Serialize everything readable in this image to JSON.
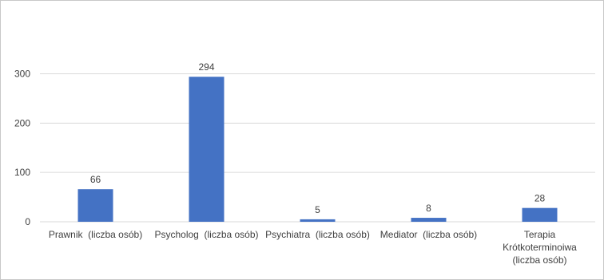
{
  "chart_data": {
    "type": "bar",
    "categories": [
      [
        "Prawnik  (liczba osób)"
      ],
      [
        "Psycholog  (liczba osób)"
      ],
      [
        "Psychiatra  (liczba osób)"
      ],
      [
        "Mediator  (liczba osób)"
      ],
      [
        "Terapia",
        "Krótkoterminoiwa",
        "(liczba osób)"
      ]
    ],
    "values": [
      66,
      294,
      5,
      8,
      28
    ],
    "data_labels": [
      "66",
      "294",
      "5",
      "8",
      "28"
    ],
    "yticks": [
      0,
      100,
      200,
      300
    ],
    "ylim": [
      0,
      350
    ],
    "grid": true,
    "bar_color": "#4472c4",
    "grid_color": "#d9d9d9",
    "title": "",
    "xlabel": "",
    "ylabel": ""
  }
}
